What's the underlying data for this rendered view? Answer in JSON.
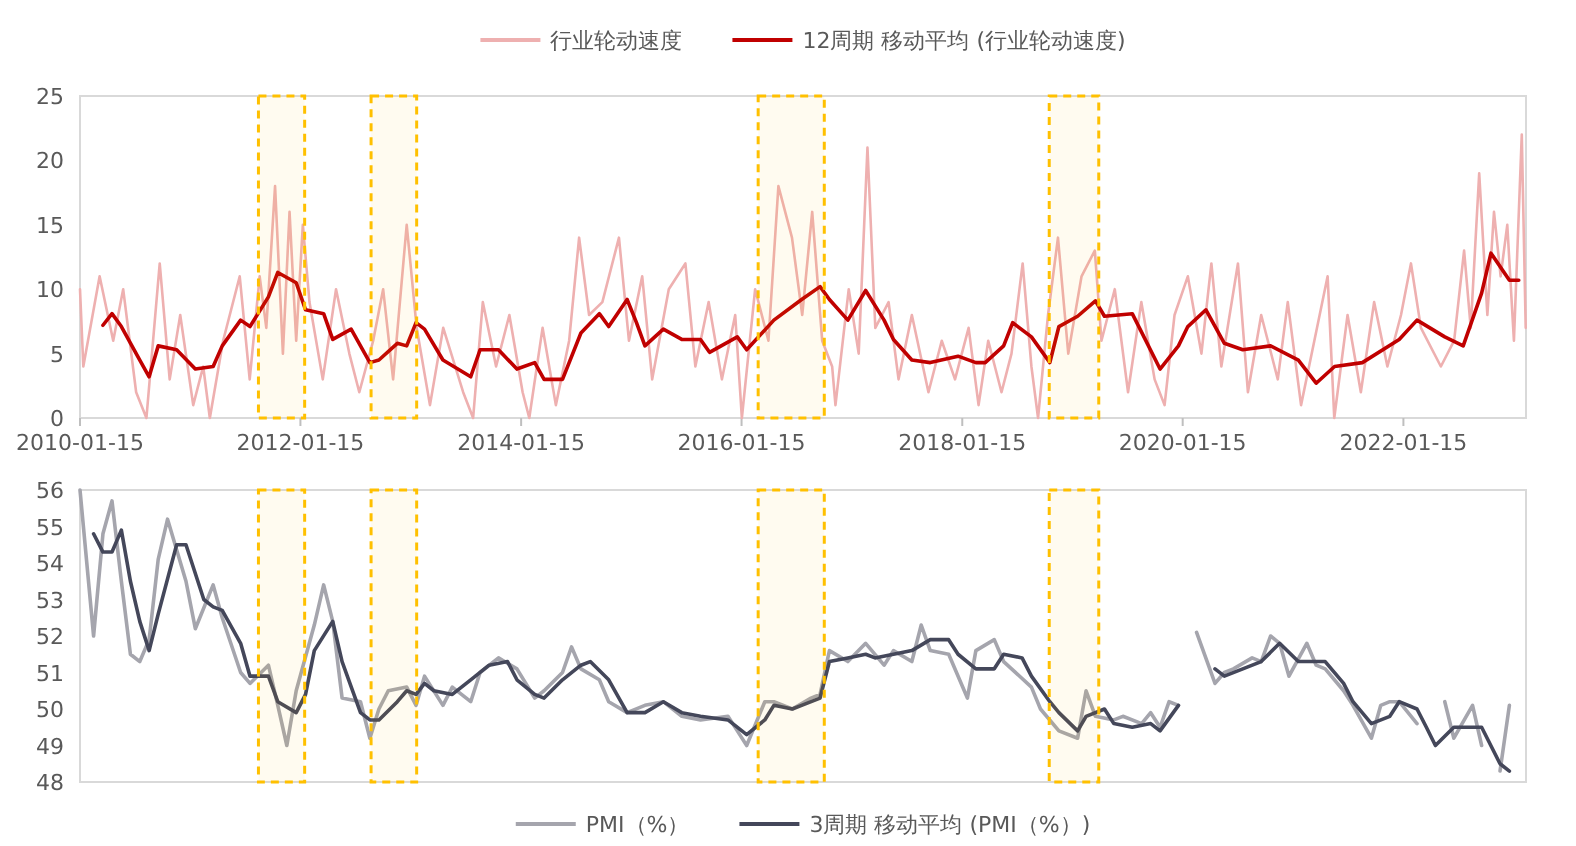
{
  "chart_data": [
    {
      "type": "line",
      "xlim": [
        "2010-01-15",
        "2023-02-25"
      ],
      "ylim": [
        0,
        25
      ],
      "yticks": [
        0,
        5,
        10,
        15,
        20,
        25
      ],
      "xticks": [
        "2010-01-15",
        "2012-01-15",
        "2014-01-15",
        "2016-01-15",
        "2018-01-15",
        "2020-01-15",
        "2022-01-15"
      ],
      "legend": "top",
      "bands": [
        {
          "axis": "x",
          "from": "2011-08-29",
          "to": "2012-01-29",
          "color": "#ffc000"
        },
        {
          "axis": "x",
          "from": "2012-09-05",
          "to": "2013-02-03",
          "color": "#ffc000"
        },
        {
          "axis": "x",
          "from": "2016-03-10",
          "to": "2016-10-15",
          "color": "#ffc000"
        },
        {
          "axis": "x",
          "from": "2018-10-30",
          "to": "2019-04-12",
          "color": "#ffc000"
        }
      ],
      "series": [
        {
          "name": "行业轮动速度",
          "color": "#eeb0b0",
          "x": [
            "2010-01-15",
            "2010-01-26",
            "2010-03-21",
            "2010-05-05",
            "2010-06-07",
            "2010-07-20",
            "2010-08-23",
            "2010-10-06",
            "2010-11-08",
            "2010-12-13",
            "2011-01-25",
            "2011-02-27",
            "2011-03-21",
            "2011-05-04",
            "2011-06-28",
            "2011-07-31",
            "2011-09-02",
            "2011-09-24",
            "2011-10-23",
            "2011-11-18",
            "2011-12-10",
            "2012-01-01",
            "2012-01-23",
            "2012-02-14",
            "2012-03-29",
            "2012-05-12",
            "2012-06-25",
            "2012-07-28",
            "2012-09-12",
            "2012-10-15",
            "2012-11-17",
            "2013-01-01",
            "2013-02-03",
            "2013-03-19",
            "2013-05-02",
            "2013-07-07",
            "2013-08-09",
            "2013-09-10",
            "2013-10-24",
            "2013-12-07",
            "2014-01-20",
            "2014-02-11",
            "2014-03-27",
            "2014-05-10",
            "2014-06-23",
            "2014-07-26",
            "2014-08-28",
            "2014-10-11",
            "2014-12-05",
            "2015-01-07",
            "2015-02-20",
            "2015-03-25",
            "2015-05-19",
            "2015-07-13",
            "2015-08-15",
            "2015-09-28",
            "2015-11-11",
            "2015-12-25",
            "2016-01-16",
            "2016-02-29",
            "2016-04-13",
            "2016-05-16",
            "2016-06-30",
            "2016-08-03",
            "2016-09-05",
            "2016-10-08",
            "2016-11-10",
            "2016-11-21",
            "2017-01-04",
            "2017-02-06",
            "2017-03-07",
            "2017-04-02",
            "2017-05-16",
            "2017-06-18",
            "2017-08-01",
            "2017-09-25",
            "2017-11-08",
            "2017-12-22",
            "2018-02-05",
            "2018-03-10",
            "2018-04-11",
            "2018-05-25",
            "2018-06-27",
            "2018-08-03",
            "2018-09-01",
            "2018-09-23",
            "2018-10-26",
            "2018-11-28",
            "2019-01-01",
            "2019-02-14",
            "2019-03-30",
            "2019-04-21",
            "2019-06-04",
            "2019-07-18",
            "2019-08-31",
            "2019-10-14",
            "2019-11-16",
            "2019-12-19",
            "2020-02-01",
            "2020-03-17",
            "2020-04-19",
            "2020-05-22",
            "2020-07-16",
            "2020-08-18",
            "2020-10-01",
            "2020-11-25",
            "2020-12-28",
            "2021-02-10",
            "2021-03-26",
            "2021-05-09",
            "2021-05-31",
            "2021-07-14",
            "2021-08-27",
            "2021-10-10",
            "2021-11-23",
            "2022-01-07",
            "2022-02-09",
            "2022-03-14",
            "2022-05-19",
            "2022-07-02",
            "2022-08-04",
            "2022-08-26",
            "2022-09-23",
            "2022-10-20",
            "2022-11-11",
            "2022-12-03",
            "2022-12-25",
            "2023-01-16",
            "2023-02-11",
            "2023-02-24"
          ],
          "values": [
            10,
            4,
            11,
            6,
            10,
            2,
            0,
            12,
            3,
            8,
            1,
            4,
            0,
            6,
            11,
            3,
            11,
            7,
            18,
            5,
            16,
            6,
            15,
            9,
            3,
            10,
            5,
            2,
            6,
            10,
            3,
            15,
            7,
            1,
            7,
            2,
            0,
            9,
            4,
            8,
            2,
            0,
            7,
            1,
            6,
            14,
            8,
            9,
            14,
            6,
            11,
            3,
            10,
            12,
            4,
            9,
            3,
            8,
            0,
            10,
            6,
            18,
            14,
            8,
            16,
            6,
            4,
            1,
            10,
            5,
            21,
            7,
            9,
            3,
            8,
            2,
            6,
            3,
            7,
            1,
            6,
            2,
            5,
            12,
            4,
            0,
            8,
            14,
            5,
            11,
            13,
            6,
            10,
            2,
            9,
            3,
            1,
            8,
            11,
            5,
            12,
            4,
            12,
            2,
            8,
            3,
            9,
            1,
            6,
            11,
            0,
            8,
            2,
            9,
            4,
            8,
            12,
            7,
            4,
            6,
            13,
            7,
            19,
            8,
            16,
            11,
            15,
            6,
            22,
            7
          ]
        },
        {
          "name": "12周期 移动平均 (行业轮动速度)",
          "color": "#c00000",
          "x": [
            "2010-04",
            "2010-05",
            "2010-06",
            "2010-08",
            "2010-09",
            "2010-10",
            "2010-12",
            "2011-02",
            "2011-04",
            "2011-05",
            "2011-07",
            "2011-08",
            "2011-10",
            "2011-11",
            "2012-01",
            "2012-02",
            "2012-04",
            "2012-05",
            "2012-07",
            "2012-09",
            "2012-10",
            "2012-12",
            "2013-01",
            "2013-02",
            "2013-03",
            "2013-05",
            "2013-08",
            "2013-09",
            "2013-11",
            "2014-01",
            "2014-03",
            "2014-04",
            "2014-06",
            "2014-08",
            "2014-10",
            "2014-11",
            "2015-01",
            "2015-02",
            "2015-03",
            "2015-05",
            "2015-07",
            "2015-09",
            "2015-10",
            "2016-01",
            "2016-02",
            "2016-05",
            "2016-08",
            "2016-10",
            "2016-11",
            "2017-01",
            "2017-03",
            "2017-05",
            "2017-06",
            "2017-08",
            "2017-10",
            "2018-01",
            "2018-03",
            "2018-04",
            "2018-06",
            "2018-07",
            "2018-09",
            "2018-11",
            "2018-12",
            "2019-02",
            "2019-04",
            "2019-05",
            "2019-08",
            "2019-11",
            "2020-01",
            "2020-02",
            "2020-04",
            "2020-06",
            "2020-08",
            "2020-11",
            "2021-02",
            "2021-04",
            "2021-06",
            "2021-09",
            "2022-01",
            "2022-03",
            "2022-06",
            "2022-08",
            "2022-10",
            "2022-11",
            "2023-01",
            "2023-02"
          ],
          "values": [
            7.2,
            8.1,
            7.1,
            4.5,
            3.2,
            5.6,
            5.3,
            3.8,
            4.0,
            5.6,
            7.6,
            7.1,
            9.4,
            11.3,
            10.5,
            8.4,
            8.1,
            6.1,
            6.9,
            4.3,
            4.5,
            5.8,
            5.6,
            7.4,
            6.9,
            4.5,
            3.2,
            5.3,
            5.3,
            3.8,
            4.3,
            3.0,
            3.0,
            6.6,
            8.1,
            7.1,
            9.2,
            7.4,
            5.6,
            6.9,
            6.1,
            6.1,
            5.1,
            6.3,
            5.3,
            7.6,
            9.2,
            10.2,
            9.2,
            7.6,
            9.9,
            7.6,
            6.1,
            4.5,
            4.3,
            4.8,
            4.3,
            4.3,
            5.6,
            7.4,
            6.3,
            4.3,
            7.1,
            7.9,
            9.1,
            7.9,
            8.1,
            3.8,
            5.6,
            7.1,
            8.4,
            5.8,
            5.3,
            5.6,
            4.5,
            2.7,
            4.0,
            4.3,
            6.1,
            7.6,
            6.3,
            5.6,
            9.7,
            12.8,
            10.7,
            10.7
          ]
        }
      ]
    },
    {
      "type": "line",
      "xlim": [
        "2010-01-15",
        "2023-02-25"
      ],
      "ylim": [
        48,
        56
      ],
      "yticks": [
        48,
        49,
        50,
        51,
        52,
        53,
        54,
        55,
        56
      ],
      "tick_labels": "y",
      "legend": "bottom",
      "bands": [
        {
          "axis": "x",
          "from": "2011-08-29",
          "to": "2012-01-29",
          "color": "#ffc000"
        },
        {
          "axis": "x",
          "from": "2012-09-05",
          "to": "2013-02-03",
          "color": "#ffc000"
        },
        {
          "axis": "x",
          "from": "2016-03-10",
          "to": "2016-10-15",
          "color": "#ffc000"
        },
        {
          "axis": "x",
          "from": "2018-10-30",
          "to": "2019-04-12",
          "color": "#ffc000"
        }
      ],
      "series": [
        {
          "name": "PMI（%）",
          "color": "#a5a5ad",
          "x": [
            "2010-01-15",
            "2010-03",
            "2010-04",
            "2010-05",
            "2010-06",
            "2010-07",
            "2010-08",
            "2010-09",
            "2010-10",
            "2010-11",
            "2011-01",
            "2011-02",
            "2011-04",
            "2011-05",
            "2011-07",
            "2011-08",
            "2011-10",
            "2011-11",
            "2011-12",
            "2012-01",
            "2012-03",
            "2012-04",
            "2012-05",
            "2012-06",
            "2012-08",
            "2012-09",
            "2012-10",
            "2012-11",
            "2013-01",
            "2013-02",
            "2013-03",
            "2013-05",
            "2013-06",
            "2013-08",
            "2013-09",
            "2013-11",
            "2014-01",
            "2014-03",
            "2014-04",
            "2014-06",
            "2014-07",
            "2014-08",
            "2014-10",
            "2014-11",
            "2015-01",
            "2015-03",
            "2015-05",
            "2015-07",
            "2015-09",
            "2015-12",
            "2016-01",
            "2016-02",
            "2016-04",
            "2016-05",
            "2016-07",
            "2016-09",
            "2016-10",
            "2016-11",
            "2017-01",
            "2017-03",
            "2017-05",
            "2017-06",
            "2017-08",
            "2017-09",
            "2017-10",
            "2017-12",
            "2018-02",
            "2018-03",
            "2018-05",
            "2018-06",
            "2018-09",
            "2018-10",
            "2018-12",
            "2019-02",
            "2019-03",
            "2019-04",
            "2019-06",
            "2019-07",
            "2019-09",
            "2019-10",
            "2019-11",
            "2019-12",
            "2020-01",
            "2020-02",
            "2020-03",
            "2020-05",
            "2020-06",
            "2020-07",
            "2020-09",
            "2020-10",
            "2020-11",
            "2020-12",
            "2021-01",
            "2021-03",
            "2021-04",
            "2021-05",
            "2021-07",
            "2021-08",
            "2021-10",
            "2021-11",
            "2021-12",
            "2022-01",
            "2022-03",
            "2022-04",
            "2022-06",
            "2022-07",
            "2022-09",
            "2022-10",
            "2022-11",
            "2022-12",
            "2023-01"
          ],
          "values": [
            56.0,
            52.0,
            54.8,
            55.7,
            53.5,
            51.5,
            51.3,
            51.9,
            54.1,
            55.2,
            53.5,
            52.2,
            53.4,
            52.5,
            51.0,
            50.7,
            51.2,
            50.1,
            49.0,
            50.5,
            52.3,
            53.4,
            52.4,
            50.3,
            50.2,
            49.2,
            50.0,
            50.5,
            50.6,
            50.1,
            50.9,
            50.1,
            50.6,
            50.2,
            51.0,
            51.4,
            51.1,
            50.3,
            50.5,
            51.0,
            51.7,
            51.1,
            50.8,
            50.2,
            49.9,
            50.1,
            50.2,
            49.8,
            49.7,
            49.8,
            49.4,
            49.0,
            50.2,
            50.2,
            50.0,
            50.3,
            50.4,
            51.6,
            51.3,
            51.8,
            51.2,
            51.6,
            51.3,
            52.3,
            51.6,
            51.5,
            50.3,
            51.6,
            51.9,
            51.3,
            50.6,
            50.0,
            49.4,
            49.2,
            50.5,
            49.8,
            49.7,
            49.8,
            49.6,
            49.9,
            49.5,
            50.2,
            50.1,
            null,
            52.1,
            50.7,
            51.0,
            51.1,
            51.4,
            51.3,
            52.0,
            51.8,
            50.9,
            51.8,
            51.2,
            51.1,
            50.5,
            50.1,
            49.2,
            50.1,
            50.2,
            50.2,
            49.6,
            null,
            50.2,
            49.2,
            50.1,
            49.0,
            null,
            48.3,
            50.1
          ]
        },
        {
          "name": "3周期 移动平均 (PMI（%）)",
          "color": "#44475a",
          "x": [
            "2010-03",
            "2010-04",
            "2010-05",
            "2010-06",
            "2010-07",
            "2010-08",
            "2010-09",
            "2010-10",
            "2010-12",
            "2011-01",
            "2011-03",
            "2011-04",
            "2011-05",
            "2011-07",
            "2011-08",
            "2011-10",
            "2011-11",
            "2012-01",
            "2012-02",
            "2012-03",
            "2012-05",
            "2012-06",
            "2012-08",
            "2012-09",
            "2012-10",
            "2012-12",
            "2013-01",
            "2013-02",
            "2013-03",
            "2013-04",
            "2013-06",
            "2013-08",
            "2013-10",
            "2013-12",
            "2014-01",
            "2014-03",
            "2014-04",
            "2014-06",
            "2014-08",
            "2014-09",
            "2014-11",
            "2015-01",
            "2015-03",
            "2015-05",
            "2015-07",
            "2015-09",
            "2015-12",
            "2016-02",
            "2016-04",
            "2016-05",
            "2016-07",
            "2016-08",
            "2016-10",
            "2016-11",
            "2017-01",
            "2017-03",
            "2017-04",
            "2017-06",
            "2017-08",
            "2017-10",
            "2017-12",
            "2018-01",
            "2018-03",
            "2018-05",
            "2018-06",
            "2018-08",
            "2018-09",
            "2018-11",
            "2018-12",
            "2019-02",
            "2019-03",
            "2019-05",
            "2019-06",
            "2019-08",
            "2019-10",
            "2019-11",
            "2020-01",
            "2020-02",
            "2020-03",
            "2020-04",
            "2020-05",
            "2020-06",
            "2020-08",
            "2020-10",
            "2020-12",
            "2021-02",
            "2021-03",
            "2021-05",
            "2021-07",
            "2021-08",
            "2021-10",
            "2021-12",
            "2022-01",
            "2022-03",
            "2022-04",
            "2022-05",
            "2022-07",
            "2022-08",
            "2022-10",
            "2022-12",
            "2023-01"
          ],
          "values": [
            54.8,
            54.3,
            54.3,
            54.9,
            53.5,
            52.4,
            51.6,
            52.6,
            54.5,
            54.5,
            53.0,
            52.8,
            52.7,
            51.8,
            50.9,
            50.9,
            50.2,
            49.9,
            50.4,
            51.6,
            52.4,
            51.3,
            49.9,
            49.7,
            49.7,
            50.2,
            50.5,
            50.4,
            50.7,
            50.5,
            50.4,
            50.8,
            51.2,
            51.3,
            50.8,
            50.4,
            50.3,
            50.8,
            51.2,
            51.3,
            50.8,
            49.9,
            49.9,
            50.2,
            49.9,
            49.8,
            49.7,
            49.3,
            49.7,
            50.1,
            50.0,
            50.1,
            50.3,
            51.3,
            51.4,
            51.5,
            51.4,
            51.5,
            51.6,
            51.9,
            51.9,
            51.5,
            51.1,
            51.1,
            51.5,
            51.4,
            50.9,
            50.2,
            49.9,
            49.4,
            49.8,
            50.0,
            49.6,
            49.5,
            49.6,
            49.4,
            50.1,
            null,
            null,
            null,
            51.1,
            50.9,
            51.1,
            51.3,
            51.8,
            51.3,
            51.3,
            51.3,
            50.7,
            50.2,
            49.6,
            49.8,
            50.2,
            50.0,
            49.5,
            49.0,
            49.5,
            49.5,
            49.5,
            48.5,
            48.3
          ]
        }
      ]
    }
  ]
}
